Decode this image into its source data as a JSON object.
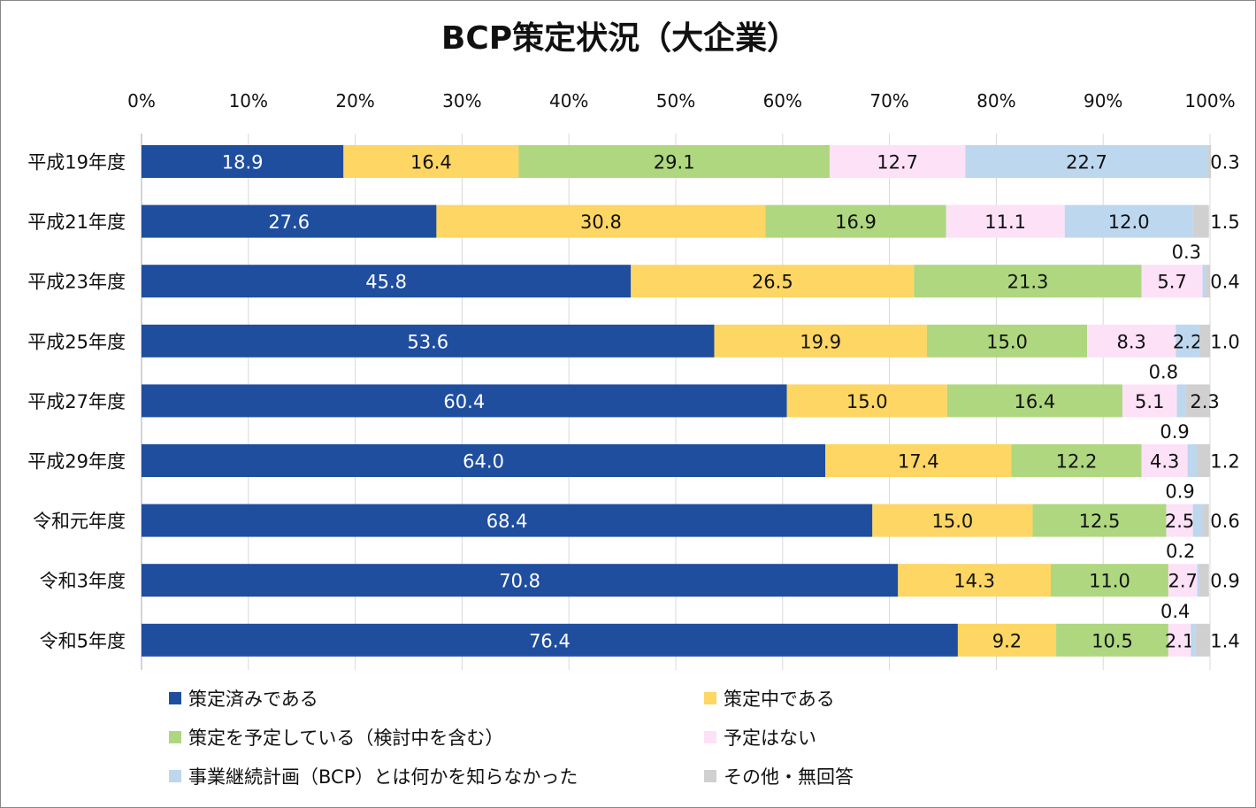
{
  "chart_data": {
    "type": "bar",
    "orientation": "horizontal",
    "stacked": "percent",
    "title": "BCP策定状況（大企業）",
    "xlim": [
      0,
      100
    ],
    "xticks": [
      "0%",
      "10%",
      "20%",
      "30%",
      "40%",
      "50%",
      "60%",
      "70%",
      "80%",
      "90%",
      "100%"
    ],
    "grid": true,
    "legend_position": "bottom",
    "categories": [
      "平成19年度",
      "平成21年度",
      "平成23年度",
      "平成25年度",
      "平成27年度",
      "平成29年度",
      "令和元年度",
      "令和3年度",
      "令和5年度"
    ],
    "series": [
      {
        "name": "策定済みである",
        "color": "#1f4e9f",
        "values": [
          18.9,
          27.6,
          45.8,
          53.6,
          60.4,
          64.0,
          68.4,
          70.8,
          76.4
        ]
      },
      {
        "name": "策定中である",
        "color": "#fdd663",
        "values": [
          16.4,
          30.8,
          26.5,
          19.9,
          15.0,
          17.4,
          15.0,
          14.3,
          9.2
        ]
      },
      {
        "name": "策定を予定している（検討中を含む）",
        "color": "#aed77f",
        "values": [
          29.1,
          16.9,
          21.3,
          15.0,
          16.4,
          12.2,
          12.5,
          11.0,
          10.5
        ]
      },
      {
        "name": "予定はない",
        "color": "#fde1f7",
        "values": [
          12.7,
          11.1,
          5.7,
          8.3,
          5.1,
          4.3,
          2.5,
          2.7,
          2.1
        ]
      },
      {
        "name": "事業継続計画（BCP）とは何かを知らなかった",
        "color": "#bdd7ee",
        "values": [
          22.7,
          12.0,
          0.3,
          2.2,
          0.8,
          0.9,
          0.9,
          0.2,
          0.4
        ]
      },
      {
        "name": "その他・無回答",
        "color": "#d0d0d0",
        "values": [
          0.3,
          1.5,
          0.4,
          1.0,
          2.3,
          1.2,
          0.6,
          0.9,
          1.4
        ]
      }
    ]
  }
}
